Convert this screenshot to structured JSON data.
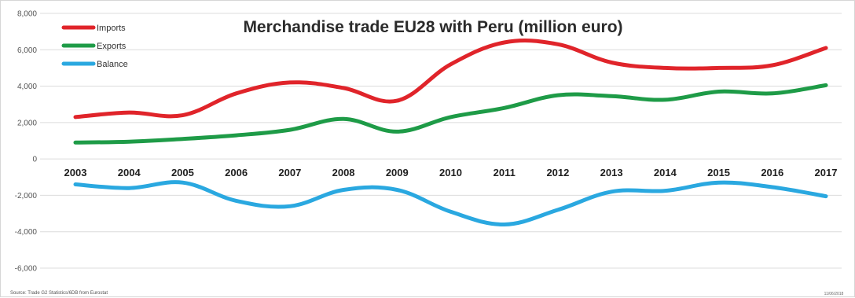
{
  "chart_data": {
    "type": "line",
    "title": "Merchandise trade EU28 with Peru (million euro)",
    "x": [
      "2003",
      "2004",
      "2005",
      "2006",
      "2007",
      "2008",
      "2009",
      "2010",
      "2011",
      "2012",
      "2013",
      "2014",
      "2015",
      "2016",
      "2017"
    ],
    "series": [
      {
        "name": "Imports",
        "color": "#e0242a",
        "values": [
          2300,
          2550,
          2400,
          3600,
          4200,
          3900,
          3200,
          5200,
          6400,
          6300,
          5300,
          5000,
          5000,
          5150,
          6100
        ]
      },
      {
        "name": "Exports",
        "color": "#1e9b47",
        "values": [
          900,
          950,
          1100,
          1300,
          1600,
          2200,
          1500,
          2300,
          2800,
          3500,
          3450,
          3250,
          3700,
          3600,
          4050
        ]
      },
      {
        "name": "Balance",
        "color": "#2aa8e0",
        "values": [
          -1400,
          -1600,
          -1300,
          -2300,
          -2600,
          -1700,
          -1700,
          -2900,
          -3600,
          -2800,
          -1800,
          -1750,
          -1300,
          -1550,
          -2050
        ]
      }
    ],
    "yticks": [
      "8,000",
      "6,000",
      "4,000",
      "2,000",
      "0",
      "-2,000",
      "-4,000",
      "-6,000"
    ],
    "ylim": [
      -6000,
      8000
    ],
    "grid": true,
    "legend": "top-left"
  },
  "footer": {
    "source": "Source: Trade G2 Statistics/6DB from Eurostat",
    "date": "11/06/2018"
  }
}
